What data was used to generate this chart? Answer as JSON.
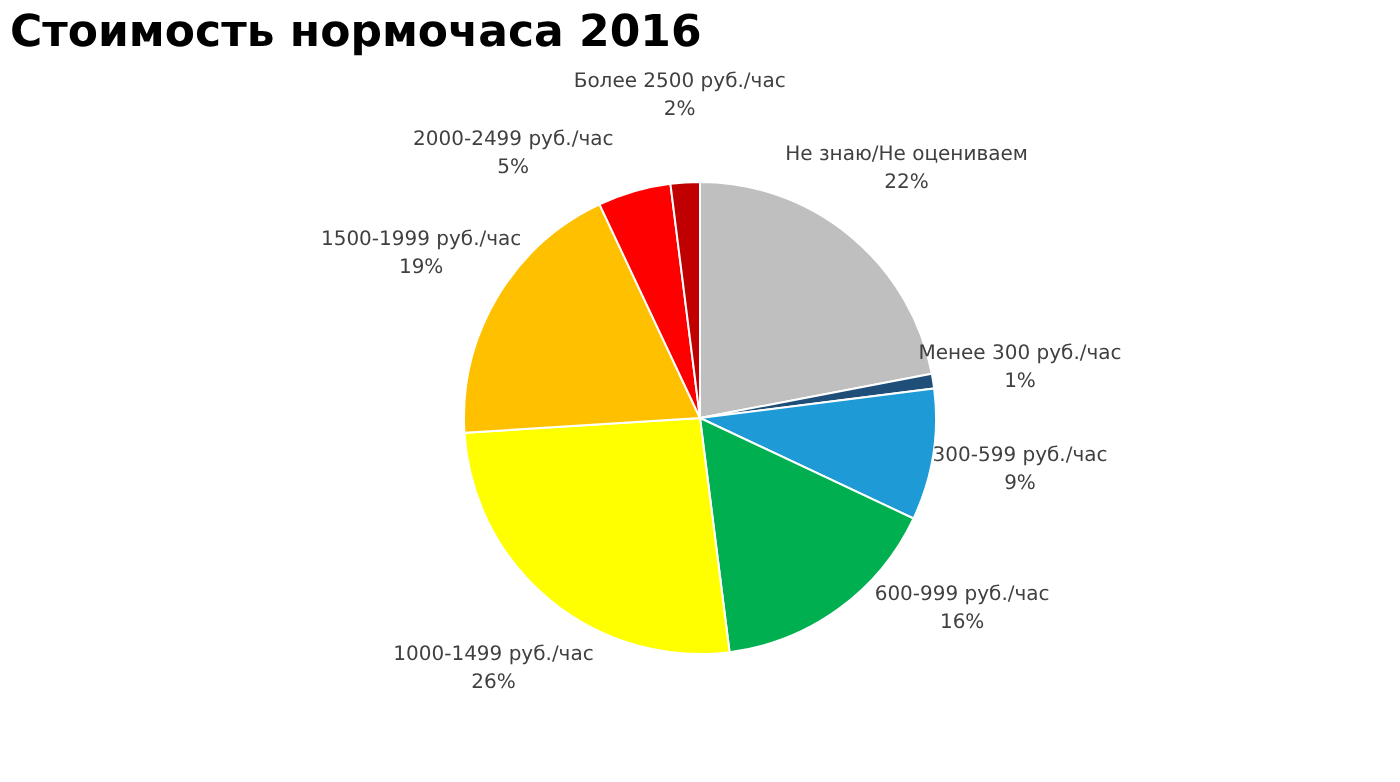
{
  "chart_data": {
    "type": "pie",
    "title": "Стоимость нормочаса 2016",
    "categories": [
      "Не знаю/Не оцениваем",
      "Менее 300 руб./час",
      "300-599 руб./час",
      "600-999 руб./час",
      "1000-1499 руб./час",
      "1500-1999 руб./час",
      "2000-2499 руб./час",
      "Более 2500 руб./час"
    ],
    "values": [
      22,
      1,
      9,
      16,
      26,
      19,
      5,
      2
    ],
    "value_labels": [
      "22%",
      "1%",
      "9%",
      "16%",
      "26%",
      "19%",
      "5%",
      "2%"
    ],
    "colors": [
      "#bfbfbf",
      "#1f4e79",
      "#1e9ad6",
      "#00b050",
      "#ffff00",
      "#ffc000",
      "#ff0000",
      "#c00000"
    ],
    "legend": false
  }
}
